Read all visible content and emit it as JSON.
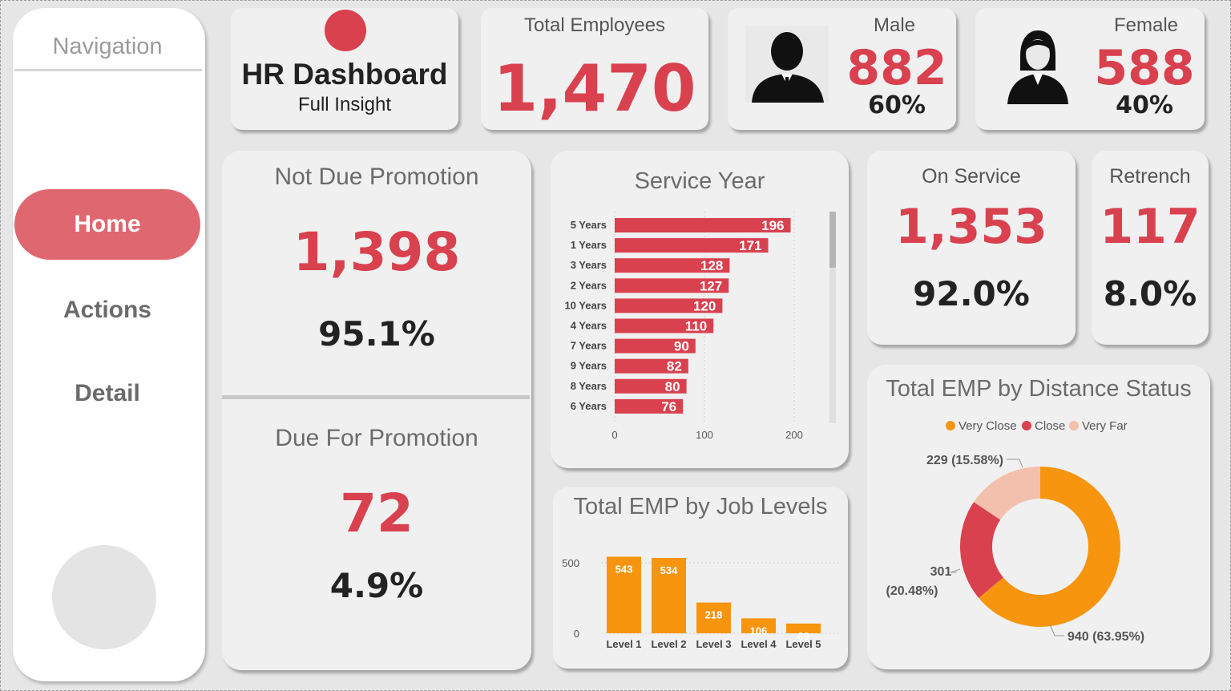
{
  "nav": {
    "title": "Navigation",
    "items": [
      {
        "label": "Home",
        "active": true
      },
      {
        "label": "Actions",
        "active": false
      },
      {
        "label": "Detail",
        "active": false
      }
    ]
  },
  "header": {
    "title": "HR Dashboard",
    "subtitle": "Full Insight"
  },
  "kpis": {
    "total": {
      "label": "Total Employees",
      "value": "1,470"
    },
    "male": {
      "label": "Male",
      "value": "882",
      "pct": "60%"
    },
    "female": {
      "label": "Female",
      "value": "588",
      "pct": "40%"
    }
  },
  "promotion": {
    "not_due": {
      "label": "Not Due Promotion",
      "value": "1,398",
      "pct": "95.1%"
    },
    "due": {
      "label": "Due For Promotion",
      "value": "72",
      "pct": "4.9%"
    }
  },
  "service": {
    "on": {
      "label": "On Service",
      "value": "1,353",
      "pct": "92.0%"
    },
    "retrench": {
      "label": "Retrench",
      "value": "117",
      "pct": "8.0%"
    }
  },
  "colors": {
    "accent": "#d9414f",
    "orange": "#f7950f",
    "pink": "#f3c0ae",
    "nav_active": "#df6870"
  },
  "chart_data": [
    {
      "type": "bar",
      "orientation": "horizontal",
      "title": "Service Year",
      "categories": [
        "5 Years",
        "1 Years",
        "3 Years",
        "2 Years",
        "10 Years",
        "4 Years",
        "7 Years",
        "9 Years",
        "8 Years",
        "6 Years"
      ],
      "values": [
        196,
        171,
        128,
        127,
        120,
        110,
        90,
        82,
        80,
        76
      ],
      "xticks": [
        "0",
        "100",
        "200"
      ],
      "xlim": [
        0,
        240
      ],
      "color": "#d9414f"
    },
    {
      "type": "bar",
      "title": "Total EMP by Job Levels",
      "categories": [
        "Level 1",
        "Level 2",
        "Level 3",
        "Level 4",
        "Level 5"
      ],
      "values": [
        543,
        534,
        218,
        106,
        69
      ],
      "yticks": [
        "0",
        "500"
      ],
      "ylim": [
        0,
        600
      ],
      "color": "#f7950f"
    },
    {
      "type": "pie",
      "donut": true,
      "title": "Total EMP by Distance Status",
      "legend_position": "top",
      "slices": [
        {
          "name": "Very Close",
          "value": 940,
          "label": "940 (63.95%)",
          "color": "#f7950f"
        },
        {
          "name": "Close",
          "value": 301,
          "label_line1": "301",
          "label_line2": "(20.48%)",
          "color": "#d9414f"
        },
        {
          "name": "Very Far",
          "value": 229,
          "label": "229 (15.58%)",
          "color": "#f3c0ae"
        }
      ]
    }
  ]
}
